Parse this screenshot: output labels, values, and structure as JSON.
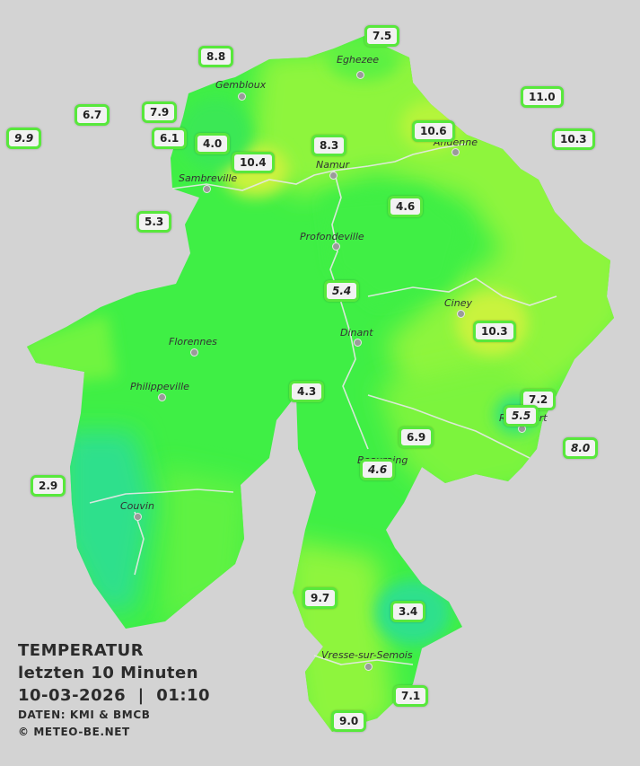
{
  "legend": {
    "title": "TEMPERATUR",
    "period": "letzten 10 Minuten",
    "datetime": "10-03-2026  |  01:10",
    "source": "DATEN: KMI & BMCB",
    "copyright": "© METEO-BE.NET"
  },
  "colors": {
    "background": "#d3d3d3",
    "base_green": "#3fef45",
    "warm_green": "#8ef53c",
    "warm_yellow": "#c9f33c",
    "cool_teal": "#2ee08c",
    "station_border": "#58e83c"
  },
  "cities": [
    {
      "name": "Eghezee"
    },
    {
      "name": "Gembloux"
    },
    {
      "name": "Andenne"
    },
    {
      "name": "Namur"
    },
    {
      "name": "Sambreville"
    },
    {
      "name": "Profondeville"
    },
    {
      "name": "Ciney"
    },
    {
      "name": "Dinant"
    },
    {
      "name": "Florennes"
    },
    {
      "name": "Philippeville"
    },
    {
      "name": "Rochefort"
    },
    {
      "name": "Beauraing"
    },
    {
      "name": "Couvin"
    },
    {
      "name": "Vresse-sur-Semois"
    }
  ],
  "stations": [
    {
      "value": "7.5",
      "italic": false
    },
    {
      "value": "8.8",
      "italic": false
    },
    {
      "value": "11.0",
      "italic": false
    },
    {
      "value": "6.7",
      "italic": false
    },
    {
      "value": "7.9",
      "italic": false
    },
    {
      "value": "10.6",
      "italic": false
    },
    {
      "value": "9.9",
      "italic": true
    },
    {
      "value": "6.1",
      "italic": false
    },
    {
      "value": "4.0",
      "italic": false
    },
    {
      "value": "8.3",
      "italic": false
    },
    {
      "value": "10.3",
      "italic": false
    },
    {
      "value": "10.4",
      "italic": false
    },
    {
      "value": "4.6",
      "italic": false
    },
    {
      "value": "5.3",
      "italic": false
    },
    {
      "value": "5.4",
      "italic": true
    },
    {
      "value": "10.3",
      "italic": false
    },
    {
      "value": "4.3",
      "italic": false
    },
    {
      "value": "7.2",
      "italic": false
    },
    {
      "value": "5.5",
      "italic": true
    },
    {
      "value": "6.9",
      "italic": false
    },
    {
      "value": "8.0",
      "italic": true
    },
    {
      "value": "4.6",
      "italic": true
    },
    {
      "value": "2.9",
      "italic": false
    },
    {
      "value": "9.7",
      "italic": false
    },
    {
      "value": "3.4",
      "italic": false
    },
    {
      "value": "7.1",
      "italic": false
    },
    {
      "value": "9.0",
      "italic": false
    }
  ]
}
